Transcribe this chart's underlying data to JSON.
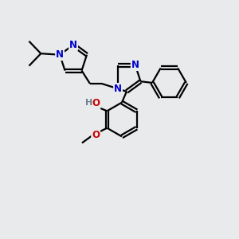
{
  "background_color": "#e8eaeb",
  "bond_color": "#000000",
  "N_color": "#0000cc",
  "O_color": "#cc0000",
  "H_color": "#708090",
  "line_width": 1.6,
  "font_size": 8.5,
  "figsize": [
    3.0,
    3.0
  ],
  "dpi": 100,
  "xlim": [
    0,
    10
  ],
  "ylim": [
    0,
    10
  ]
}
